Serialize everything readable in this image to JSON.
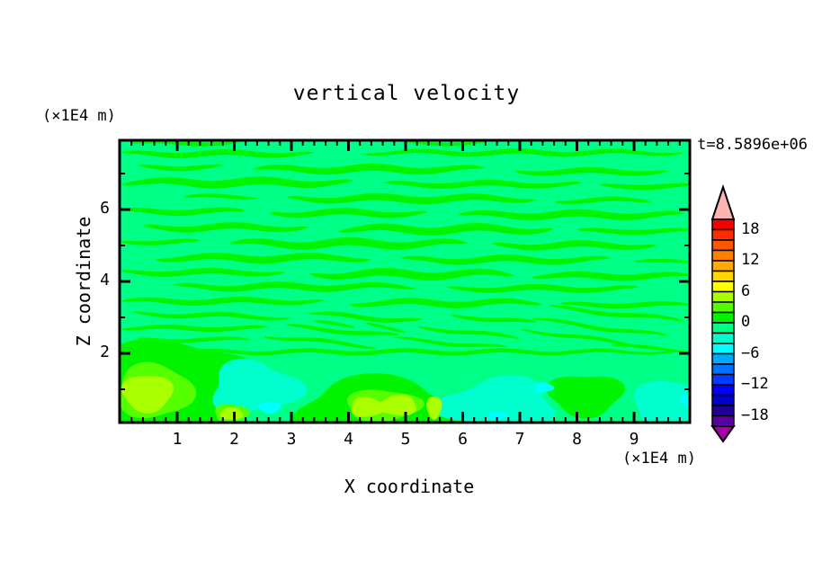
{
  "figure": {
    "title": "vertical velocity",
    "time_label": "t=8.5896e+06",
    "background": "#FFFFFF"
  },
  "x_axis": {
    "title": "X coordinate",
    "unit_label": "(×1E4 m)",
    "range": [
      0,
      10
    ],
    "major_ticks": [
      1,
      2,
      3,
      4,
      5,
      6,
      7,
      8,
      9
    ],
    "minor_tick_step": 0.2
  },
  "y_axis": {
    "title": "Z coordinate",
    "unit_label": "(×1E4 m)",
    "range": [
      0,
      7.9
    ],
    "major_ticks": [
      2,
      4,
      6
    ],
    "minor_ticks": [
      1,
      3,
      5,
      7
    ]
  },
  "colorbar": {
    "tick_labels": [
      "18",
      "12",
      "6",
      "0",
      "−6",
      "−12",
      "−18"
    ],
    "tick_values": [
      18,
      12,
      6,
      0,
      -6,
      -12,
      -18
    ],
    "level_min": -20,
    "level_max": 20,
    "level_step": 2,
    "band_colors_top_to_bottom": [
      "#F80000",
      "#FF2B00",
      "#FF5500",
      "#FF8000",
      "#FFAA00",
      "#FFD500",
      "#FFFF00",
      "#AAFF00",
      "#55FF00",
      "#00F400",
      "#00FF87",
      "#00FFCC",
      "#00FFFF",
      "#00AAFF",
      "#0072FF",
      "#003CFF",
      "#0000FF",
      "#0000C8",
      "#1E0096",
      "#5A00A0"
    ],
    "over_color": "#FFB4B4",
    "under_color": "#A800A8"
  },
  "chart_data": {
    "type": "filled_contour",
    "field_name": "vertical velocity",
    "title": "vertical velocity",
    "xlabel": "X coordinate (×1E4 m)",
    "ylabel": "Z coordinate (×1E4 m)",
    "time_annotation": "t=8.5896e+06",
    "x_range": [
      0,
      10
    ],
    "z_range": [
      0,
      7.9
    ],
    "contour_levels": {
      "min": -20,
      "max": 20,
      "step": 2
    },
    "dominant_bands": {
      "background": {
        "level_range": [
          -2,
          0
        ],
        "color": "#00FF87"
      },
      "stripes": {
        "level_range": [
          0,
          2
        ],
        "color": "#00F400"
      }
    },
    "stripes": [
      [
        0.2,
        2.1,
        7.85,
        0.12,
        0,
        0.04,
        0
      ],
      [
        5.0,
        6.4,
        7.85,
        0.1,
        0,
        0.04,
        2
      ],
      [
        0.0,
        3.4,
        7.55,
        0.16,
        0,
        0.05,
        1
      ],
      [
        4.2,
        9.9,
        7.58,
        0.14,
        0,
        0.05,
        4
      ],
      [
        0.3,
        1.8,
        7.18,
        0.13,
        0,
        0.05,
        2
      ],
      [
        2.3,
        6.4,
        7.12,
        0.2,
        0,
        0.06,
        0
      ],
      [
        6.9,
        9.6,
        7.05,
        0.16,
        0,
        0.05,
        3
      ],
      [
        0.0,
        4.1,
        6.75,
        0.22,
        0,
        0.06,
        5
      ],
      [
        4.6,
        8.1,
        6.7,
        0.16,
        0,
        0.05,
        1
      ],
      [
        8.4,
        10.0,
        6.65,
        0.14,
        0,
        0.04,
        2
      ],
      [
        1.1,
        2.4,
        6.35,
        0.11,
        0,
        0.04,
        0
      ],
      [
        2.9,
        7.3,
        6.3,
        0.2,
        0,
        0.06,
        2
      ],
      [
        7.6,
        9.3,
        6.25,
        0.13,
        0,
        0.05,
        4
      ],
      [
        0.0,
        2.2,
        5.95,
        0.16,
        0,
        0.05,
        1
      ],
      [
        2.6,
        5.4,
        5.9,
        0.18,
        0,
        0.06,
        3
      ],
      [
        5.9,
        9.9,
        5.85,
        0.2,
        0,
        0.06,
        0
      ],
      [
        0.4,
        3.3,
        5.5,
        0.18,
        0,
        0.06,
        2
      ],
      [
        3.8,
        7.6,
        5.45,
        0.22,
        0,
        0.07,
        5
      ],
      [
        8.0,
        10.0,
        5.4,
        0.14,
        0,
        0.04,
        1
      ],
      [
        0.0,
        1.4,
        5.1,
        0.12,
        0,
        0.04,
        3
      ],
      [
        1.9,
        6.1,
        5.05,
        0.22,
        0,
        0.07,
        0
      ],
      [
        6.5,
        9.4,
        5.0,
        0.18,
        0,
        0.06,
        2
      ],
      [
        0.6,
        4.4,
        4.65,
        0.2,
        0,
        0.06,
        4
      ],
      [
        4.9,
        8.6,
        4.6,
        0.18,
        0,
        0.06,
        1
      ],
      [
        9.0,
        10.0,
        4.55,
        0.1,
        0,
        0.03,
        0
      ],
      [
        0.0,
        2.9,
        4.25,
        0.16,
        0,
        0.05,
        2
      ],
      [
        3.3,
        6.9,
        4.2,
        0.22,
        0,
        0.07,
        3
      ],
      [
        7.2,
        10.0,
        4.15,
        0.18,
        0,
        0.05,
        5
      ],
      [
        0.9,
        5.2,
        3.85,
        0.18,
        0,
        0.06,
        1
      ],
      [
        5.7,
        9.1,
        3.8,
        0.16,
        0,
        0.05,
        2
      ],
      [
        0.0,
        3.6,
        3.45,
        0.16,
        0,
        0.05,
        0
      ],
      [
        4.0,
        7.4,
        3.4,
        0.18,
        0,
        0.06,
        4
      ],
      [
        7.7,
        10.0,
        3.35,
        0.14,
        0,
        0.04,
        1
      ],
      [
        0.2,
        3.0,
        3.05,
        0.13,
        -0.04,
        0.05,
        2
      ],
      [
        3.3,
        5.3,
        3.0,
        0.13,
        -0.1,
        0.05,
        0
      ],
      [
        5.8,
        7.3,
        2.95,
        0.12,
        -0.14,
        0.04,
        3
      ],
      [
        7.5,
        9.9,
        3.1,
        0.12,
        -0.16,
        0.04,
        1
      ],
      [
        3.4,
        4.1,
        2.8,
        0.09,
        -0.28,
        0.03,
        0
      ],
      [
        4.3,
        5.0,
        2.72,
        0.09,
        -0.28,
        0.03,
        2
      ],
      [
        0.0,
        2.6,
        2.7,
        0.13,
        0,
        0.04,
        5
      ],
      [
        2.9,
        4.9,
        2.62,
        0.12,
        -0.14,
        0.04,
        1
      ],
      [
        5.2,
        7.0,
        2.58,
        0.11,
        -0.18,
        0.04,
        3
      ],
      [
        7.2,
        9.6,
        2.72,
        0.11,
        -0.2,
        0.04,
        0
      ],
      [
        0.3,
        2.3,
        2.38,
        0.11,
        0,
        0.04,
        2
      ],
      [
        2.5,
        4.5,
        2.33,
        0.11,
        -0.16,
        0.04,
        4
      ],
      [
        4.8,
        6.8,
        2.28,
        0.1,
        -0.13,
        0.04,
        1
      ],
      [
        7.0,
        9.3,
        2.42,
        0.1,
        -0.22,
        0.04,
        3
      ],
      [
        8.6,
        9.9,
        2.15,
        0.09,
        -0.12,
        0.03,
        0
      ],
      [
        0.0,
        10.0,
        2.04,
        0.12,
        0,
        0.05,
        2
      ]
    ],
    "blobs": [
      [
        "#00F400",
        1.05,
        1.0,
        1.4,
        1.4,
        0.16,
        1
      ],
      [
        "#00F400",
        4.5,
        0.45,
        1.4,
        0.85,
        0.18,
        3
      ],
      [
        "#00F400",
        8.15,
        0.85,
        0.65,
        0.58,
        0.15,
        0
      ],
      [
        "#00FFCC",
        2.35,
        1.05,
        0.78,
        0.7,
        0.2,
        2
      ],
      [
        "#00FFCC",
        6.65,
        0.6,
        1.0,
        0.68,
        0.2,
        4
      ],
      [
        "#00FFCC",
        9.75,
        0.55,
        0.8,
        0.68,
        0.15,
        1
      ],
      [
        "#55FF00",
        0.6,
        0.95,
        0.66,
        0.75,
        0.12,
        2
      ],
      [
        "#AAFF00",
        0.48,
        0.9,
        0.44,
        0.52,
        0.1,
        0
      ],
      [
        "#55FF00",
        4.6,
        0.55,
        0.66,
        0.44,
        0.12,
        1
      ],
      [
        "#AAFF00",
        4.33,
        0.5,
        0.3,
        0.27,
        0.1,
        2
      ],
      [
        "#AAFF00",
        4.87,
        0.55,
        0.33,
        0.29,
        0.1,
        4
      ],
      [
        "#AAFF00",
        5.5,
        0.5,
        0.13,
        0.32,
        0.08,
        0
      ],
      [
        "#55FF00",
        1.95,
        0.33,
        0.3,
        0.26,
        0.1,
        1
      ],
      [
        "#AAFF00",
        1.95,
        0.32,
        0.2,
        0.17,
        0.08,
        3
      ],
      [
        "#00FFFF",
        2.62,
        0.5,
        0.2,
        0.17,
        0.1,
        0
      ],
      [
        "#00FFFF",
        7.42,
        1.05,
        0.17,
        0.14,
        0.1,
        2
      ],
      [
        "#00FFFF",
        6.6,
        0.27,
        0.16,
        0.12,
        0.1,
        1
      ],
      [
        "#00FFFF",
        9.97,
        0.72,
        0.17,
        0.15,
        0.1,
        0
      ]
    ]
  }
}
